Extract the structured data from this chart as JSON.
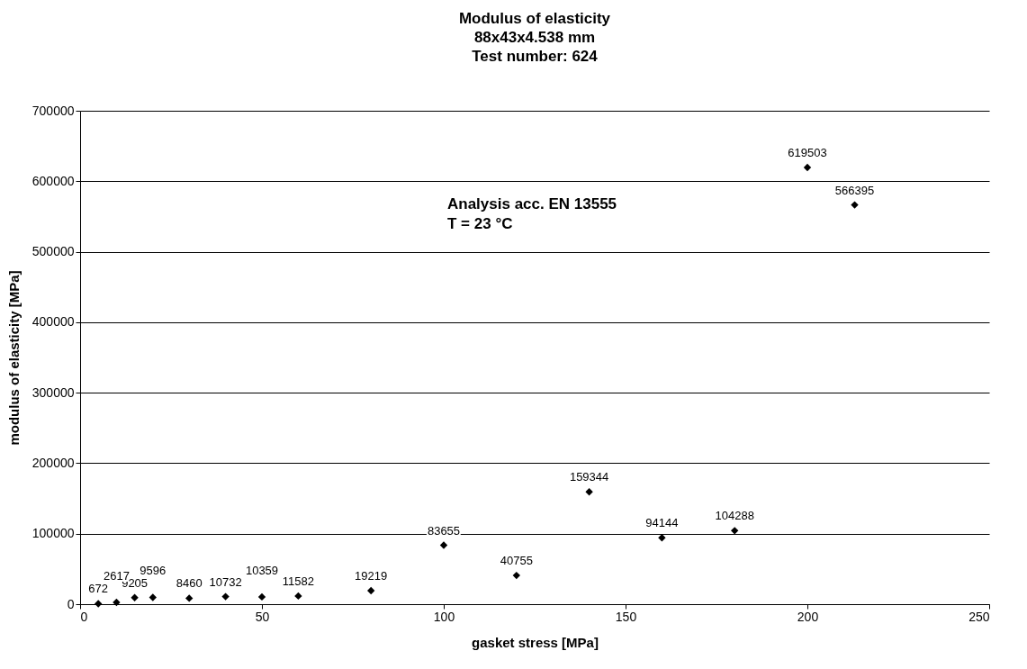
{
  "chart_data": {
    "type": "scatter",
    "title": "Modulus  of elasticity\n88x43x4.538  mm\nTest number:  624",
    "xlabel": "gasket stress [MPa]",
    "ylabel": "modulus  of elasticity [MPa]",
    "x": [
      5,
      10,
      15,
      20,
      30,
      40,
      50,
      60,
      80,
      100,
      120,
      140,
      160,
      180,
      200,
      213
    ],
    "series": [
      {
        "color": "#000000",
        "values": [
          672,
          2617,
          9205,
          9596,
          8460,
          10732,
          10359,
          11582,
          19219,
          83655,
          40755,
          159344,
          94144,
          104288,
          619503,
          566395
        ]
      }
    ],
    "xlim": [
      0,
      250
    ],
    "xticks": [
      0,
      50,
      100,
      150,
      200,
      250
    ],
    "ylim": [
      0,
      700000
    ],
    "yticks": [
      0,
      100000,
      200000,
      300000,
      400000,
      500000,
      600000,
      700000
    ],
    "grid": "y",
    "marker": "diamond",
    "data_labels": true,
    "annotations": [
      "Analysis acc. EN 13555",
      "T = 23 °C"
    ]
  }
}
